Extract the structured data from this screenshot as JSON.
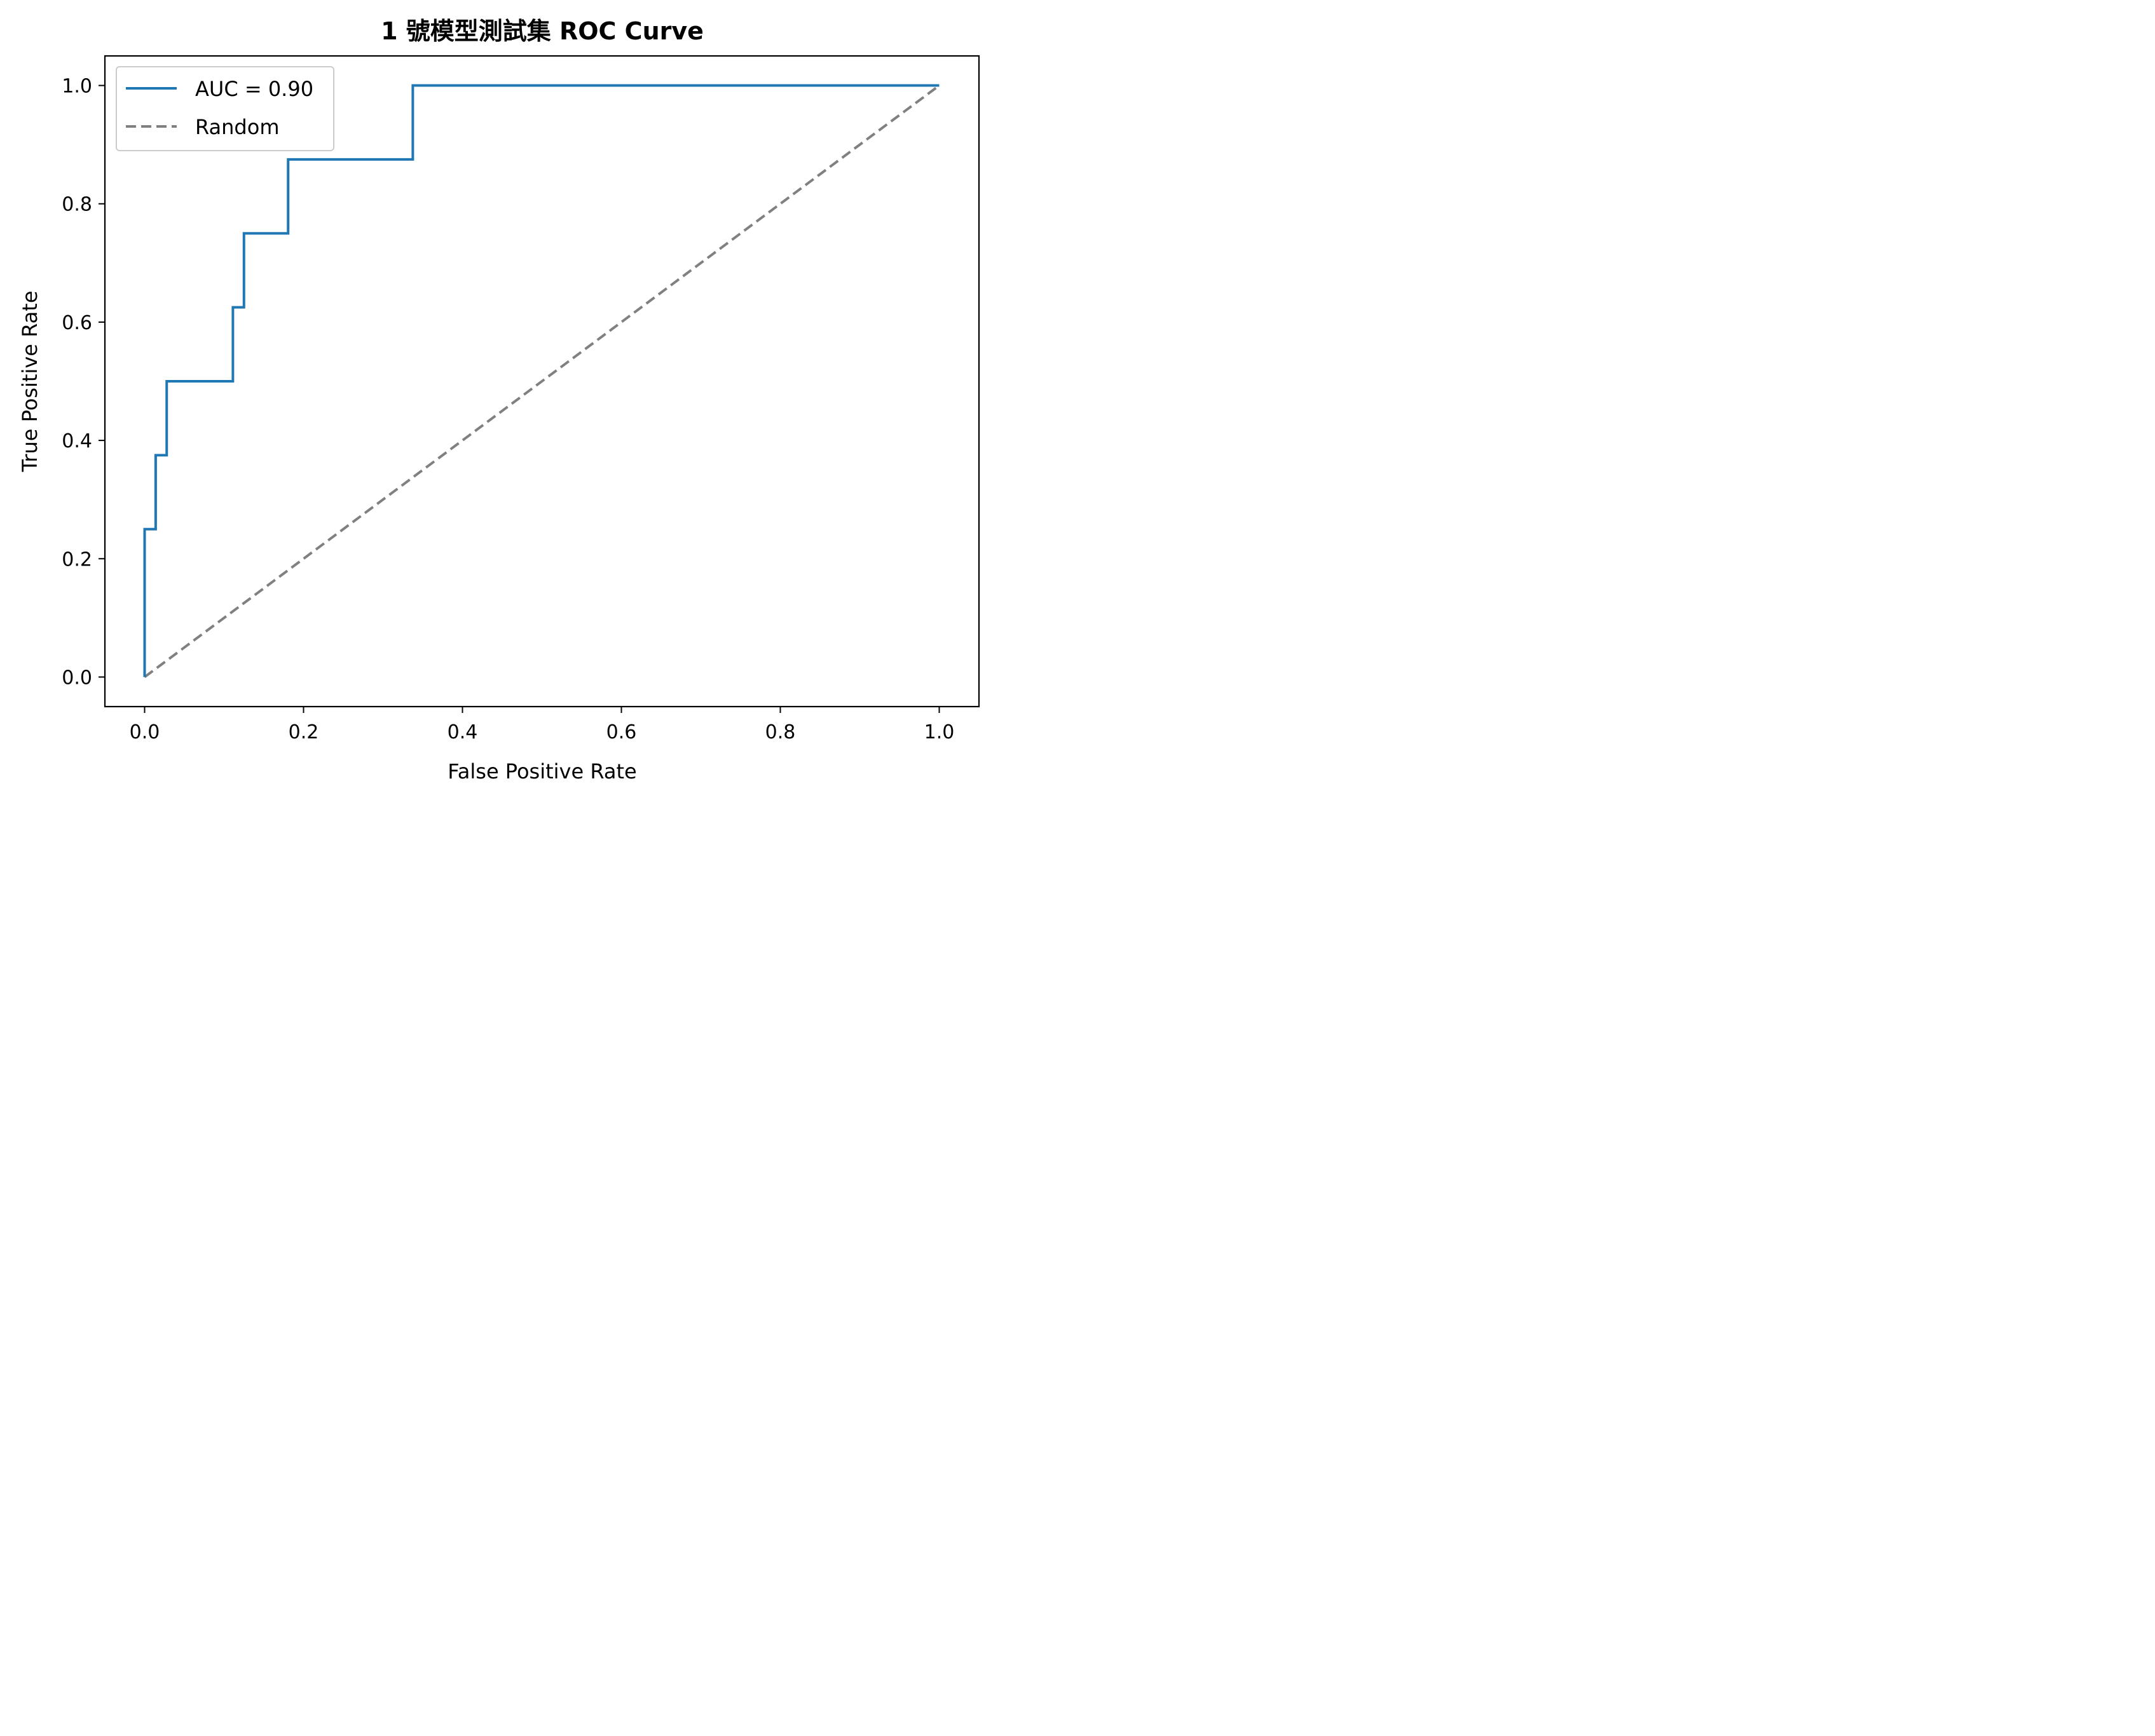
{
  "chart_data": {
    "type": "line",
    "title": "1 號模型測試集 ROC Curve",
    "xlabel": "False Positive Rate",
    "ylabel": "True Positive Rate",
    "xlim": [
      -0.05,
      1.05
    ],
    "ylim": [
      -0.05,
      1.05
    ],
    "xticks": [
      0.0,
      0.2,
      0.4,
      0.6,
      0.8,
      1.0
    ],
    "xtick_labels": [
      "0.0",
      "0.2",
      "0.4",
      "0.6",
      "0.8",
      "1.0"
    ],
    "yticks": [
      0.0,
      0.2,
      0.4,
      0.6,
      0.8,
      1.0
    ],
    "ytick_labels": [
      "0.0",
      "0.2",
      "0.4",
      "0.6",
      "0.8",
      "1.0"
    ],
    "grid": false,
    "legend_position": "upper-left",
    "series": [
      {
        "name": "AUC = 0.90",
        "color": "#1f77b4",
        "style": "solid",
        "x": [
          0.0,
          0.0,
          0.0139,
          0.0139,
          0.0278,
          0.0278,
          0.1111,
          0.1111,
          0.125,
          0.125,
          0.1806,
          0.1806,
          0.3375,
          0.3375,
          1.0
        ],
        "y": [
          0.0,
          0.25,
          0.25,
          0.375,
          0.375,
          0.5,
          0.5,
          0.625,
          0.625,
          0.75,
          0.75,
          0.875,
          0.875,
          1.0,
          1.0
        ]
      },
      {
        "name": "Random",
        "color": "#808080",
        "style": "dashed",
        "x": [
          0.0,
          1.0
        ],
        "y": [
          0.0,
          1.0
        ]
      }
    ]
  }
}
